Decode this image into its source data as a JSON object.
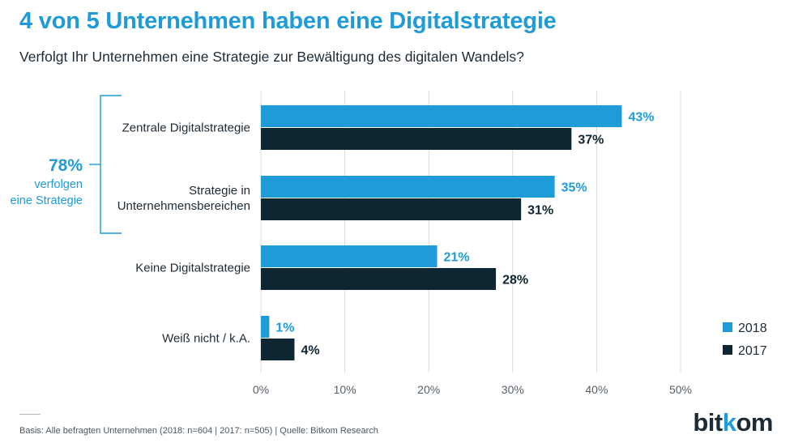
{
  "title": "4 von 5 Unternehmen haben eine Digitalstrategie",
  "subtitle": "Verfolgt Ihr Unternehmen eine Strategie zur Bewältigung des digitalen Wandels?",
  "bracket": {
    "value": "78%",
    "text_line1": "verfolgen",
    "text_line2": "eine Strategie"
  },
  "footer": "Basis: Alle befragten Unternehmen (2018: n=604 | 2017: n=505) | Quelle: Bitkom Research",
  "logo": {
    "part1": "bit",
    "part2": "k",
    "part3": "om"
  },
  "colors": {
    "y2018": "#1f9bd7",
    "y2017": "#0e2631",
    "grid": "#d9d9d9",
    "bracket": "#1f9bd7"
  },
  "chart_data": {
    "type": "bar",
    "orientation": "horizontal",
    "categories": [
      [
        "Zentrale Digitalstrategie"
      ],
      [
        "Strategie in",
        "Unternehmensbereichen"
      ],
      [
        "Keine Digitalstrategie"
      ],
      [
        "Weiß nicht / k.A."
      ]
    ],
    "series": [
      {
        "name": "2018",
        "values": [
          43,
          35,
          21,
          1
        ],
        "labels": [
          "43%",
          "35%",
          "21%",
          "1%"
        ]
      },
      {
        "name": "2017",
        "values": [
          37,
          31,
          28,
          4
        ],
        "labels": [
          "37%",
          "31%",
          "28%",
          "4%"
        ]
      }
    ],
    "xlim": [
      0,
      50
    ],
    "xticks": [
      0,
      10,
      20,
      30,
      40,
      50
    ],
    "xtick_labels": [
      "0%",
      "10%",
      "20%",
      "30%",
      "40%",
      "50%"
    ],
    "legend_position": "bottom-right",
    "grid": true
  }
}
